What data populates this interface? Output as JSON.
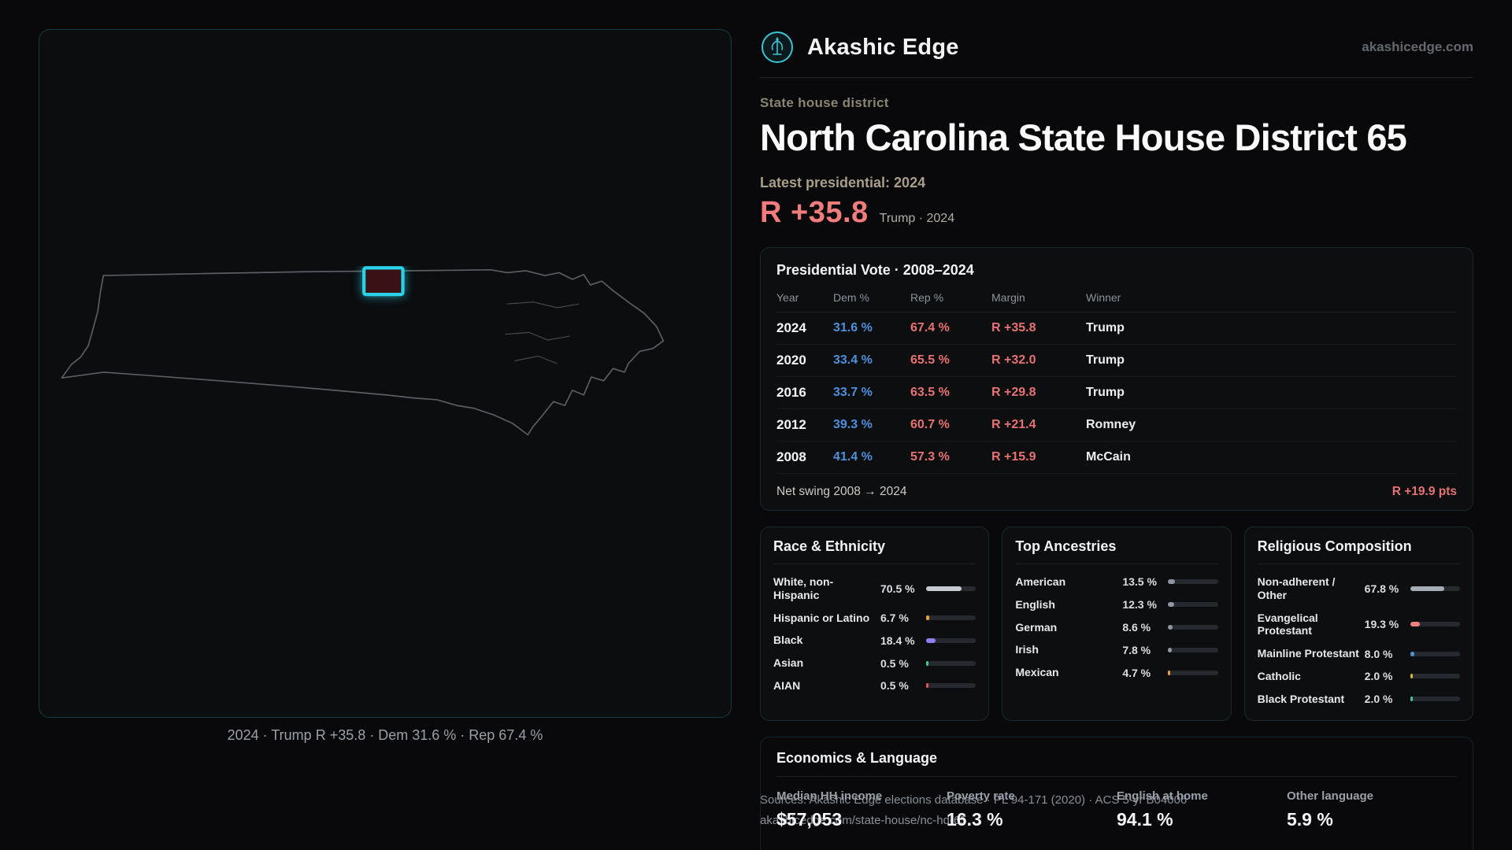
{
  "site": {
    "brand": "Akashic Edge",
    "domain": "akashicedge.com"
  },
  "colors": {
    "accent": "#22d3ee",
    "dem_blue": "#4e90dc",
    "rep_red": "#e87272",
    "margin_red": "#f17c7c"
  },
  "map": {
    "caption": "2024 · Trump R +35.8 · Dem 31.6 % · Rep 67.4 %",
    "highlight_color": "#22d3ee",
    "highlight_fill": "#3a1114"
  },
  "header": {
    "kicker": "State house district",
    "title": "North Carolina State House District 65",
    "latest_label": "Latest presidential: 2024",
    "margin_value": "R +35.8",
    "margin_context": "Trump · 2024"
  },
  "presidential": {
    "title": "Presidential Vote · 2008–2024",
    "columns": [
      "Year",
      "Dem %",
      "Rep %",
      "Margin",
      "Winner"
    ],
    "rows": [
      {
        "year": "2024",
        "dem": "31.6 %",
        "rep": "67.4 %",
        "margin": "R +35.8",
        "winner": "Trump"
      },
      {
        "year": "2020",
        "dem": "33.4 %",
        "rep": "65.5 %",
        "margin": "R +32.0",
        "winner": "Trump"
      },
      {
        "year": "2016",
        "dem": "33.7 %",
        "rep": "63.5 %",
        "margin": "R +29.8",
        "winner": "Trump"
      },
      {
        "year": "2012",
        "dem": "39.3 %",
        "rep": "60.7 %",
        "margin": "R +21.4",
        "winner": "Romney"
      },
      {
        "year": "2008",
        "dem": "41.4 %",
        "rep": "57.3 %",
        "margin": "R +15.9",
        "winner": "McCain"
      }
    ],
    "net_swing_label": "Net swing 2008 → 2024",
    "net_swing_value": "R +19.9 pts"
  },
  "race": {
    "title": "Race & Ethnicity",
    "rows": [
      {
        "label": "White, non-Hispanic",
        "value": "70.5 %",
        "pct": 70.5,
        "color": "#c7cbd1"
      },
      {
        "label": "Hispanic or Latino",
        "value": "6.7 %",
        "pct": 6.7,
        "color": "#e8a13c"
      },
      {
        "label": "Black",
        "value": "18.4 %",
        "pct": 18.4,
        "color": "#8f7ff2"
      },
      {
        "label": "Asian",
        "value": "0.5 %",
        "pct": 0.5,
        "color": "#43c98a"
      },
      {
        "label": "AIAN",
        "value": "0.5 %",
        "pct": 0.5,
        "color": "#e05656"
      }
    ]
  },
  "ancestries": {
    "title": "Top Ancestries",
    "rows": [
      {
        "label": "American",
        "value": "13.5 %",
        "pct": 13.5,
        "color": "#8e96a3"
      },
      {
        "label": "English",
        "value": "12.3 %",
        "pct": 12.3,
        "color": "#8e96a3"
      },
      {
        "label": "German",
        "value": "8.6 %",
        "pct": 8.6,
        "color": "#8e96a3"
      },
      {
        "label": "Irish",
        "value": "7.8 %",
        "pct": 7.8,
        "color": "#8e96a3"
      },
      {
        "label": "Mexican",
        "value": "4.7 %",
        "pct": 4.7,
        "color": "#e8a13c"
      }
    ]
  },
  "religion": {
    "title": "Religious Composition",
    "rows": [
      {
        "label": "Non-adherent / Other",
        "value": "67.8 %",
        "pct": 67.8,
        "color": "#a7adb6"
      },
      {
        "label": "Evangelical Protestant",
        "value": "19.3 %",
        "pct": 19.3,
        "color": "#ef8080"
      },
      {
        "label": "Mainline Protestant",
        "value": "8.0 %",
        "pct": 8.0,
        "color": "#4e90dc"
      },
      {
        "label": "Catholic",
        "value": "2.0 %",
        "pct": 2.0,
        "color": "#d9b13b"
      },
      {
        "label": "Black Protestant",
        "value": "2.0 %",
        "pct": 2.0,
        "color": "#3fc1b4"
      }
    ]
  },
  "economics": {
    "title": "Economics & Language",
    "stats": [
      {
        "label": "Median HH income",
        "value": "$57,053"
      },
      {
        "label": "Poverty rate",
        "value": "16.3 %"
      },
      {
        "label": "English at home",
        "value": "94.1 %"
      },
      {
        "label": "Other language",
        "value": "5.9 %"
      }
    ]
  },
  "footer": {
    "sources_line": "Sources: Akashic Edge elections database · PL 94-171 (2020) · ACS 5-yr B04006",
    "permalink": "akashicedge.com/state-house/nc-hd-65"
  }
}
